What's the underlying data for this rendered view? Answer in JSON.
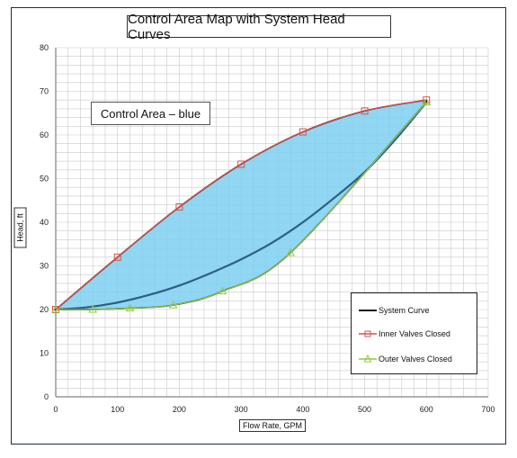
{
  "chart_data": {
    "type": "line",
    "title": "Control Area Map with System Head Curves",
    "xlabel": "Flow Rate, GPM",
    "ylabel": "Head, ft",
    "xlim": [
      0,
      700
    ],
    "ylim": [
      0,
      80
    ],
    "x_ticks": [
      0,
      100,
      200,
      300,
      400,
      500,
      600,
      700
    ],
    "y_ticks": [
      0,
      10,
      20,
      30,
      40,
      50,
      60,
      70,
      80
    ],
    "grid": true,
    "legend_position": "bottom-right",
    "annotation": "Control Area – blue",
    "control_area_color": "#7ecff0",
    "series": [
      {
        "name": "System Curve",
        "color": "#1a1a1a",
        "marker": "none",
        "x": [
          0,
          50,
          100,
          150,
          200,
          250,
          300,
          350,
          400,
          450,
          500,
          550,
          600
        ],
        "y": [
          20,
          20.5,
          21.6,
          23.3,
          25.5,
          28.3,
          31.5,
          35.3,
          40,
          45.5,
          51.5,
          59,
          67.5
        ]
      },
      {
        "name": "Inner Valves Closed",
        "color": "#d9534f",
        "marker": "square",
        "x": [
          0,
          100,
          200,
          300,
          400,
          500,
          600
        ],
        "y": [
          20,
          32,
          43.5,
          53.3,
          60.7,
          65.5,
          68
        ]
      },
      {
        "name": "Outer Valves Closed",
        "color": "#92c83e",
        "marker": "triangle",
        "x": [
          0,
          60,
          120,
          190,
          270,
          380,
          600
        ],
        "y": [
          20,
          20,
          20.3,
          21,
          24.2,
          33,
          67.5
        ]
      }
    ]
  }
}
